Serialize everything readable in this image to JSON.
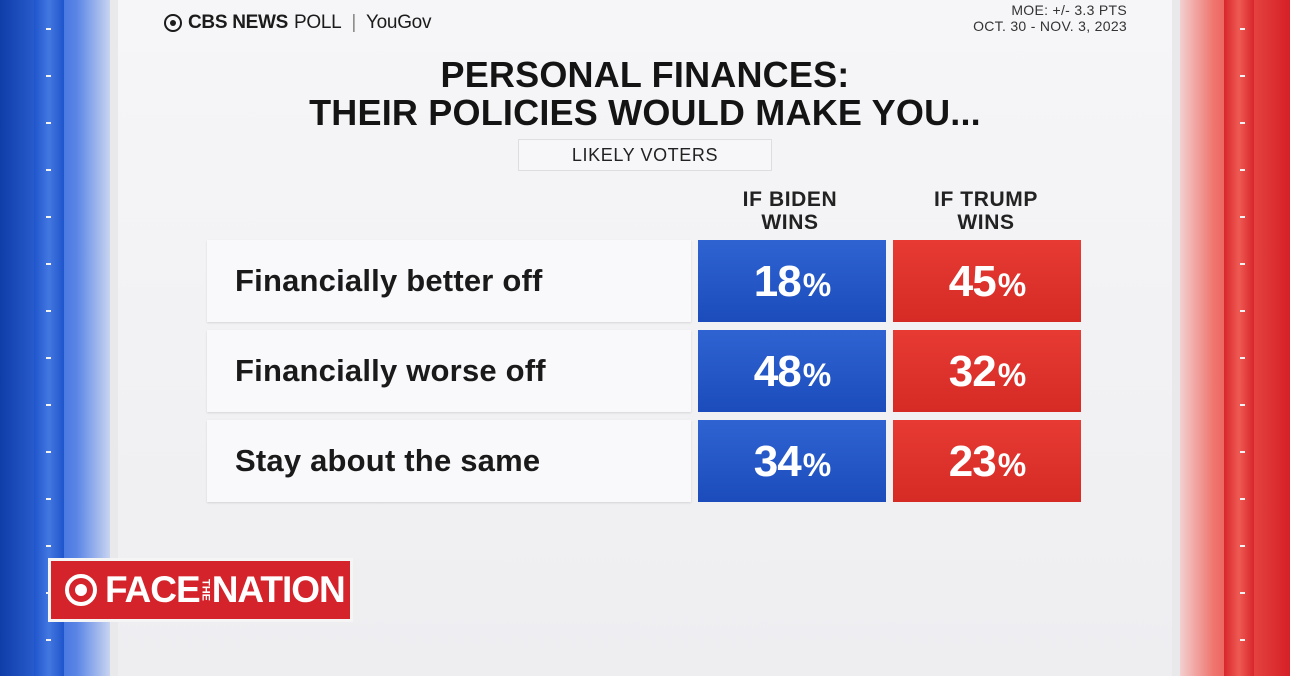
{
  "header": {
    "brand": "CBS NEWS",
    "poll": "POLL",
    "partner": "YouGov",
    "moe": "MOE: +/- 3.3 PTS",
    "dates": "OCT. 30 - NOV. 3, 2023"
  },
  "title_line1": "PERSONAL FINANCES:",
  "title_line2": "THEIR POLICIES WOULD MAKE YOU...",
  "subtitle": "LIKELY VOTERS",
  "columns": [
    {
      "line1": "IF BIDEN",
      "line2": "WINS",
      "color": "#2458c9"
    },
    {
      "line1": "IF TRUMP",
      "line2": "WINS",
      "color": "#dd322c"
    }
  ],
  "rows": [
    {
      "label": "Financially better off",
      "biden": "18",
      "trump": "45"
    },
    {
      "label": "Financially worse off",
      "biden": "48",
      "trump": "32"
    },
    {
      "label": "Stay about the same",
      "biden": "34",
      "trump": "23"
    }
  ],
  "percent_sign": "%",
  "logo": {
    "face": "FACE",
    "the": "THE",
    "nation": "NATION"
  }
}
